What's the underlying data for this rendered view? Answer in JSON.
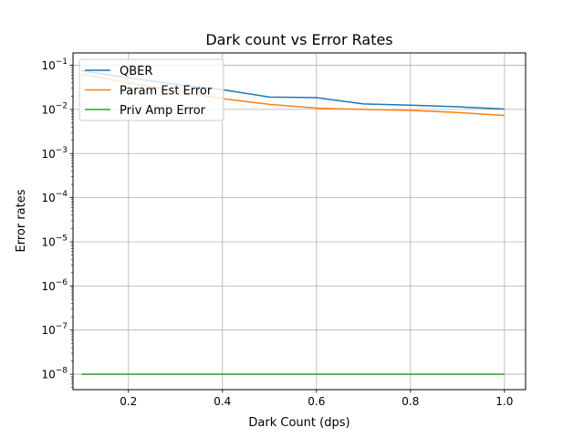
{
  "chart_data": {
    "type": "line",
    "title": "Dark count vs Error Rates",
    "xlabel": "Dark Count (dps)",
    "ylabel": "Error rates",
    "xlim": [
      0.082,
      1.045
    ],
    "ylim_log10": [
      -8.35,
      -0.72
    ],
    "yscale": "log",
    "grid": true,
    "legend_placement": "top-left",
    "x_ticks": [
      {
        "value": 0.2,
        "label": "0.2"
      },
      {
        "value": 0.4,
        "label": "0.4"
      },
      {
        "value": 0.6,
        "label": "0.6"
      },
      {
        "value": 0.8,
        "label": "0.8"
      },
      {
        "value": 1.0,
        "label": "1.0"
      }
    ],
    "y_ticks": [
      {
        "exp": -8,
        "base": "10",
        "sup": "−8"
      },
      {
        "exp": -7,
        "base": "10",
        "sup": "−7"
      },
      {
        "exp": -6,
        "base": "10",
        "sup": "−6"
      },
      {
        "exp": -5,
        "base": "10",
        "sup": "−5"
      },
      {
        "exp": -4,
        "base": "10",
        "sup": "−4"
      },
      {
        "exp": -3,
        "base": "10",
        "sup": "−3"
      },
      {
        "exp": -2,
        "base": "10",
        "sup": "−2"
      },
      {
        "exp": -1,
        "base": "10",
        "sup": "−1"
      }
    ],
    "x": [
      0.1,
      0.2,
      0.3,
      0.4,
      0.5,
      0.6,
      0.7,
      0.8,
      0.9,
      1.0
    ],
    "series": [
      {
        "name": "QBER",
        "color": "#1f77b4",
        "values": [
          0.075,
          0.052,
          0.037,
          0.028,
          0.019,
          0.0185,
          0.0133,
          0.0125,
          0.0115,
          0.0102
        ]
      },
      {
        "name": "Param Est Error",
        "color": "#ff7f0e",
        "values": [
          0.063,
          0.04,
          0.026,
          0.0175,
          0.013,
          0.0107,
          0.01,
          0.0095,
          0.0085,
          0.0073
        ]
      },
      {
        "name": "Priv Amp Error",
        "color": "#2ca02c",
        "values": [
          1e-08,
          1e-08,
          1e-08,
          1e-08,
          1e-08,
          1e-08,
          1e-08,
          1e-08,
          1e-08,
          1e-08
        ]
      }
    ]
  }
}
